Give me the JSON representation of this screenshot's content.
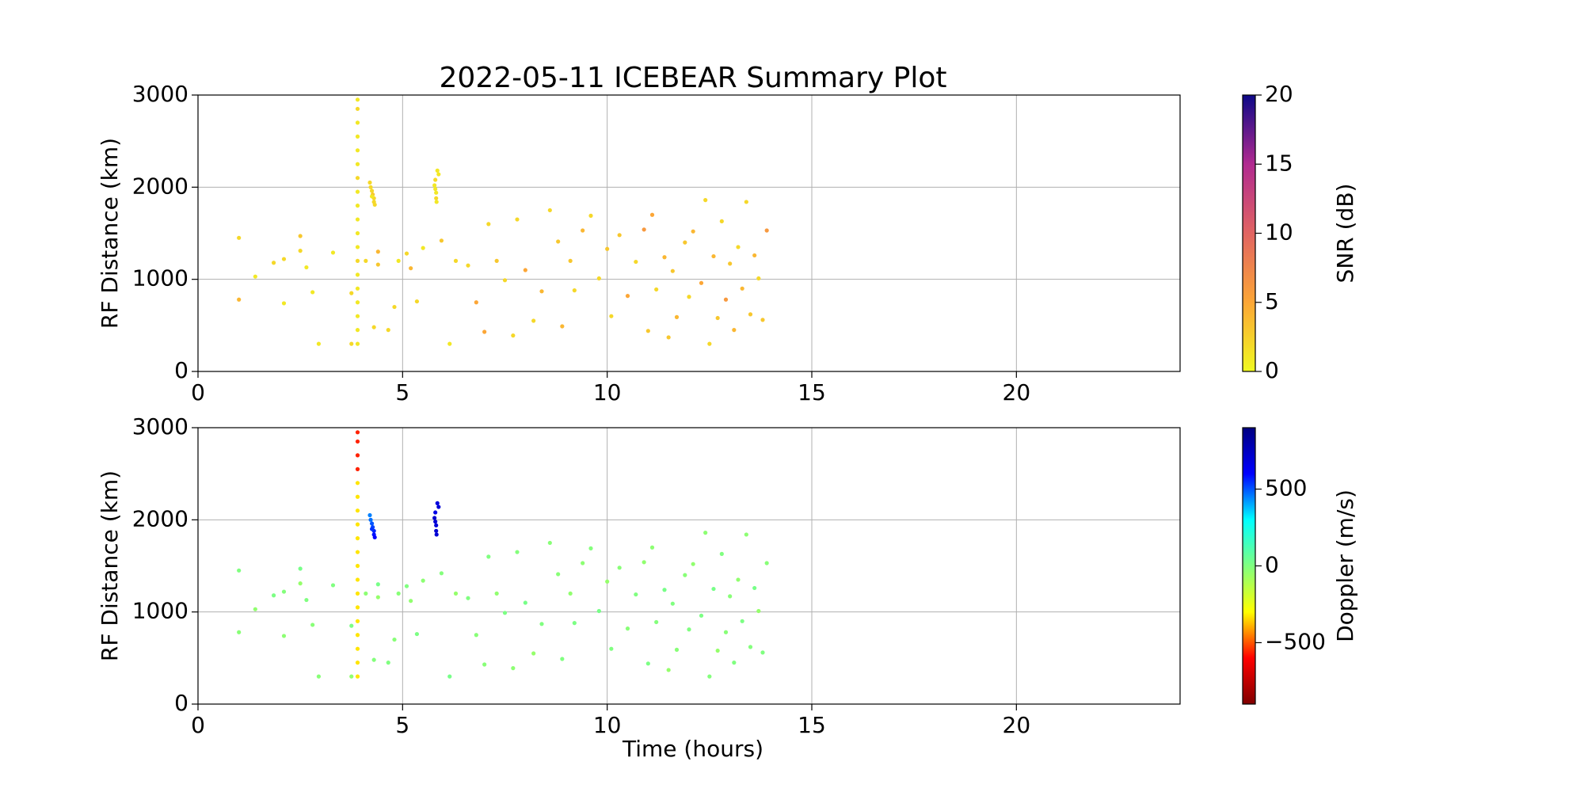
{
  "chart_data": [
    {
      "type": "scatter",
      "title": "2022-05-11 ICEBEAR Summary Plot",
      "ylabel": "RF Distance (km)",
      "xlim": [
        0,
        24
      ],
      "xticks": [
        0,
        5,
        10,
        15,
        20
      ],
      "ylim": [
        0,
        3000
      ],
      "yticks": [
        0,
        1000,
        2000,
        3000
      ],
      "grid": true,
      "x": [
        1.0,
        1.0,
        1.4,
        1.85,
        2.1,
        2.1,
        2.5,
        2.5,
        2.65,
        2.8,
        2.95,
        3.3,
        3.75,
        3.75,
        4.1,
        4.3,
        4.4,
        4.4,
        4.65,
        4.8,
        4.9,
        5.1,
        5.2,
        5.35,
        5.5,
        5.95,
        6.15,
        6.3,
        6.6,
        6.8,
        7.0,
        7.1,
        7.3,
        7.5,
        7.7,
        7.8,
        8.0,
        8.2,
        8.4,
        8.6,
        8.8,
        8.9,
        9.1,
        9.2,
        9.4,
        9.6,
        9.8,
        10.0,
        10.1,
        10.3,
        10.5,
        10.7,
        10.9,
        11.0,
        11.1,
        11.2,
        11.4,
        11.5,
        11.6,
        11.7,
        11.9,
        12.0,
        12.1,
        12.3,
        12.4,
        12.5,
        12.6,
        12.7,
        12.8,
        12.9,
        13.0,
        13.1,
        13.2,
        13.3,
        13.4,
        13.5,
        13.6,
        13.7,
        13.8,
        13.9,
        3.9,
        3.9,
        3.9,
        3.9,
        3.9,
        3.9,
        3.9,
        3.9,
        3.9,
        3.9,
        3.9,
        3.9,
        3.9,
        3.9,
        3.9,
        3.9,
        3.9,
        3.9,
        3.9,
        4.2,
        4.22,
        4.25,
        4.27,
        4.3,
        4.3,
        4.32,
        4.25,
        5.85,
        5.88,
        5.8,
        5.78,
        5.8,
        5.82,
        5.82,
        5.83
      ],
      "y": [
        780,
        1450,
        1030,
        1180,
        740,
        1220,
        1470,
        1310,
        1130,
        860,
        300,
        1290,
        300,
        850,
        1200,
        480,
        1300,
        1160,
        450,
        700,
        1200,
        1280,
        1120,
        760,
        1340,
        1420,
        300,
        1200,
        1150,
        750,
        430,
        1600,
        1200,
        990,
        390,
        1650,
        1100,
        550,
        870,
        1750,
        1410,
        490,
        1200,
        880,
        1530,
        1690,
        1010,
        1330,
        600,
        1480,
        820,
        1190,
        1540,
        440,
        1700,
        890,
        1240,
        370,
        1090,
        590,
        1400,
        810,
        1520,
        960,
        1860,
        300,
        1250,
        580,
        1630,
        780,
        1170,
        450,
        1350,
        900,
        1840,
        620,
        1260,
        1010,
        560,
        1530,
        300,
        450,
        600,
        750,
        900,
        1050,
        1200,
        1350,
        1500,
        1650,
        1800,
        1950,
        2100,
        2250,
        2400,
        2550,
        2700,
        2850,
        2950,
        2050,
        2000,
        1960,
        1920,
        1880,
        1840,
        1810,
        1900,
        2180,
        2140,
        2080,
        2020,
        1980,
        1940,
        1880,
        1840
      ],
      "color_values": [
        4,
        2,
        1,
        2,
        1,
        2,
        3,
        2,
        1,
        1,
        1,
        1,
        2,
        2,
        2,
        2,
        4,
        3,
        2,
        2,
        1,
        2,
        4,
        2,
        1,
        3,
        1,
        2,
        2,
        5,
        5,
        2,
        3,
        2,
        2,
        2,
        5,
        2,
        4,
        2,
        3,
        4,
        3,
        2,
        4,
        2,
        2,
        3,
        2,
        3,
        5,
        2,
        6,
        3,
        5,
        2,
        4,
        3,
        3,
        4,
        3,
        2,
        4,
        5,
        2,
        2,
        4,
        3,
        2,
        6,
        3,
        4,
        2,
        4,
        2,
        3,
        4,
        2,
        3,
        6,
        1,
        1,
        1,
        1,
        1,
        1,
        2,
        1,
        1,
        1,
        1,
        1,
        2,
        1,
        1,
        1,
        1,
        2,
        1,
        2,
        2,
        2,
        3,
        2,
        2,
        2,
        1,
        1,
        1,
        2,
        1,
        1,
        1,
        2,
        1
      ],
      "colorbar": {
        "label": "SNR (dB)",
        "lim": [
          0,
          20
        ],
        "ticks": [
          0,
          5,
          10,
          15,
          20
        ],
        "colormap": [
          "#f0f921",
          "#fca636",
          "#e16462",
          "#b12a90",
          "#0d0887"
        ]
      }
    },
    {
      "type": "scatter",
      "ylabel": "RF Distance (km)",
      "xlabel": "Time (hours)",
      "xlim": [
        0,
        24
      ],
      "xticks": [
        0,
        5,
        10,
        15,
        20
      ],
      "ylim": [
        0,
        3000
      ],
      "yticks": [
        0,
        1000,
        2000,
        3000
      ],
      "grid": true,
      "x": [
        1.0,
        1.0,
        1.4,
        1.85,
        2.1,
        2.1,
        2.5,
        2.5,
        2.65,
        2.8,
        2.95,
        3.3,
        3.75,
        3.75,
        4.1,
        4.3,
        4.4,
        4.4,
        4.65,
        4.8,
        4.9,
        5.1,
        5.2,
        5.35,
        5.5,
        5.95,
        6.15,
        6.3,
        6.6,
        6.8,
        7.0,
        7.1,
        7.3,
        7.5,
        7.7,
        7.8,
        8.0,
        8.2,
        8.4,
        8.6,
        8.8,
        8.9,
        9.1,
        9.2,
        9.4,
        9.6,
        9.8,
        10.0,
        10.1,
        10.3,
        10.5,
        10.7,
        10.9,
        11.0,
        11.1,
        11.2,
        11.4,
        11.5,
        11.6,
        11.7,
        11.9,
        12.0,
        12.1,
        12.3,
        12.4,
        12.5,
        12.6,
        12.7,
        12.8,
        12.9,
        13.0,
        13.1,
        13.2,
        13.3,
        13.4,
        13.5,
        13.6,
        13.7,
        13.8,
        13.9,
        3.9,
        3.9,
        3.9,
        3.9,
        3.9,
        3.9,
        3.9,
        3.9,
        3.9,
        3.9,
        3.9,
        3.9,
        3.9,
        3.9,
        3.9,
        3.9,
        3.9,
        3.9,
        3.9,
        4.2,
        4.22,
        4.25,
        4.27,
        4.3,
        4.3,
        4.32,
        4.25,
        5.85,
        5.88,
        5.8,
        5.78,
        5.8,
        5.82,
        5.82,
        5.83
      ],
      "y": [
        780,
        1450,
        1030,
        1180,
        740,
        1220,
        1470,
        1310,
        1130,
        860,
        300,
        1290,
        300,
        850,
        1200,
        480,
        1300,
        1160,
        450,
        700,
        1200,
        1280,
        1120,
        760,
        1340,
        1420,
        300,
        1200,
        1150,
        750,
        430,
        1600,
        1200,
        990,
        390,
        1650,
        1100,
        550,
        870,
        1750,
        1410,
        490,
        1200,
        880,
        1530,
        1690,
        1010,
        1330,
        600,
        1480,
        820,
        1190,
        1540,
        440,
        1700,
        890,
        1240,
        370,
        1090,
        590,
        1400,
        810,
        1520,
        960,
        1860,
        300,
        1250,
        580,
        1630,
        780,
        1170,
        450,
        1350,
        900,
        1840,
        620,
        1260,
        1010,
        560,
        1530,
        300,
        450,
        600,
        750,
        900,
        1050,
        1200,
        1350,
        1500,
        1650,
        1800,
        1950,
        2100,
        2250,
        2400,
        2550,
        2700,
        2850,
        2950,
        2050,
        2000,
        1960,
        1920,
        1880,
        1840,
        1810,
        1900,
        2180,
        2140,
        2080,
        2020,
        1980,
        1940,
        1880,
        1840
      ],
      "color_values": [
        -20,
        0,
        -40,
        10,
        -30,
        -10,
        20,
        -50,
        0,
        -20,
        -20,
        0,
        -40,
        10,
        -30,
        -10,
        20,
        -50,
        0,
        -20,
        -20,
        0,
        -40,
        10,
        -30,
        -10,
        20,
        -50,
        0,
        -20,
        -20,
        0,
        -40,
        10,
        -30,
        -10,
        20,
        -50,
        0,
        -20,
        -20,
        0,
        -40,
        10,
        -30,
        -10,
        20,
        -50,
        0,
        -20,
        -20,
        0,
        -40,
        10,
        -30,
        -10,
        20,
        -50,
        0,
        -20,
        -20,
        0,
        -40,
        10,
        -30,
        -10,
        20,
        -50,
        0,
        -20,
        -20,
        0,
        -40,
        10,
        -30,
        -10,
        20,
        -50,
        0,
        -20,
        -330,
        -330,
        -330,
        -330,
        -330,
        -330,
        -330,
        -330,
        -330,
        -330,
        -330,
        -330,
        -330,
        -330,
        -330,
        -560,
        -560,
        -560,
        -560,
        450,
        470,
        500,
        520,
        560,
        580,
        600,
        540,
        680,
        700,
        660,
        720,
        700,
        690,
        710,
        700
      ],
      "colorbar": {
        "label": "Doppler (m/s)",
        "lim": [
          -900,
          900
        ],
        "ticks": [
          {
            "value": -500,
            "label": "−500"
          },
          0,
          500
        ],
        "colormap": [
          "#800000",
          "#ff0000",
          "#ffff00",
          "#80ff80",
          "#00ffff",
          "#0000ff",
          "#000080"
        ]
      }
    }
  ]
}
